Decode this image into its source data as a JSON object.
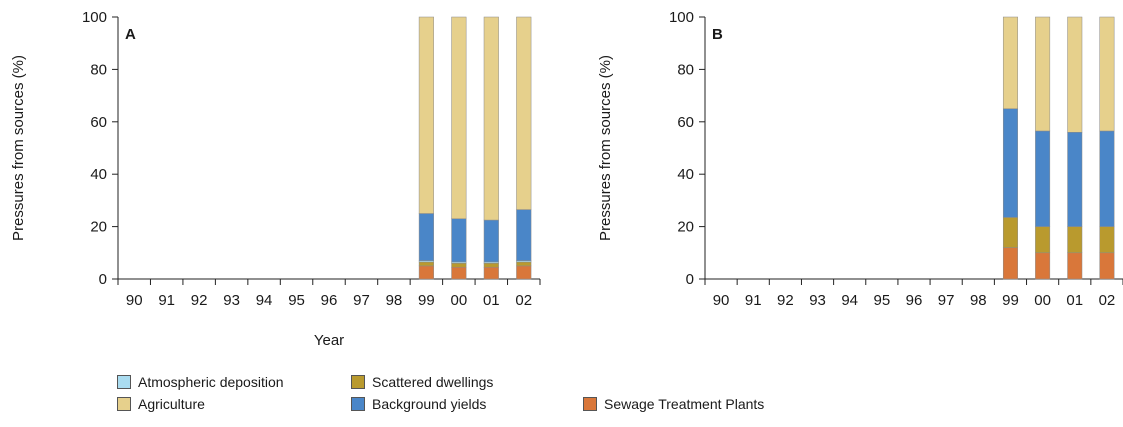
{
  "chart_data": [
    {
      "type": "bar",
      "stacked": true,
      "panel_label": "A",
      "categories": [
        "90",
        "91",
        "92",
        "93",
        "94",
        "95",
        "96",
        "97",
        "98",
        "99",
        "00",
        "01",
        "02"
      ],
      "ylabel": "Pressures from sources (%)",
      "xlabel": "Year",
      "ylim": [
        0,
        100
      ],
      "yticks": [
        0,
        20,
        40,
        60,
        80,
        100
      ],
      "series": [
        {
          "name": "Sewage Treatment Plants",
          "values": [
            null,
            null,
            null,
            null,
            null,
            null,
            null,
            null,
            null,
            5,
            4.5,
            4.5,
            5
          ]
        },
        {
          "name": "Scattered dwellings",
          "values": [
            null,
            null,
            null,
            null,
            null,
            null,
            null,
            null,
            null,
            1.5,
            1.5,
            1.5,
            1.5
          ]
        },
        {
          "name": "Atmospheric deposition",
          "values": [
            null,
            null,
            null,
            null,
            null,
            null,
            null,
            null,
            null,
            0.5,
            0.5,
            0.5,
            0.5
          ]
        },
        {
          "name": "Background yields",
          "values": [
            null,
            null,
            null,
            null,
            null,
            null,
            null,
            null,
            null,
            18,
            16.5,
            16,
            19.5
          ]
        },
        {
          "name": "Agriculture",
          "values": [
            null,
            null,
            null,
            null,
            null,
            null,
            null,
            null,
            null,
            75,
            77,
            77.5,
            73.5
          ]
        }
      ]
    },
    {
      "type": "bar",
      "stacked": true,
      "panel_label": "B",
      "categories": [
        "90",
        "91",
        "92",
        "93",
        "94",
        "95",
        "96",
        "97",
        "98",
        "99",
        "00",
        "01",
        "02"
      ],
      "ylabel": "Pressures from sources (%)",
      "xlabel": "",
      "ylim": [
        0,
        100
      ],
      "yticks": [
        0,
        20,
        40,
        60,
        80,
        100
      ],
      "series": [
        {
          "name": "Sewage Treatment Plants",
          "values": [
            null,
            null,
            null,
            null,
            null,
            null,
            null,
            null,
            null,
            12,
            10,
            10,
            10
          ]
        },
        {
          "name": "Scattered dwellings",
          "values": [
            null,
            null,
            null,
            null,
            null,
            null,
            null,
            null,
            null,
            11.5,
            10,
            10,
            10
          ]
        },
        {
          "name": "Atmospheric deposition",
          "values": [
            null,
            null,
            null,
            null,
            null,
            null,
            null,
            null,
            null,
            0,
            0,
            0,
            0
          ]
        },
        {
          "name": "Background yields",
          "values": [
            null,
            null,
            null,
            null,
            null,
            null,
            null,
            null,
            null,
            41.5,
            36.5,
            36,
            36.5
          ]
        },
        {
          "name": "Agriculture",
          "values": [
            null,
            null,
            null,
            null,
            null,
            null,
            null,
            null,
            null,
            35,
            43.5,
            44,
            43.5
          ]
        }
      ]
    }
  ],
  "colors": {
    "Atmospheric deposition": "#aadcf0",
    "Scattered dwellings": "#b99a2e",
    "Background yields": "#4a86c8",
    "Sewage Treatment Plants": "#d9773a",
    "Agriculture": "#e6d08c"
  },
  "legend": [
    {
      "label": "Atmospheric deposition",
      "color": "#aadcf0"
    },
    {
      "label": "Scattered dwellings",
      "color": "#b99a2e"
    },
    {
      "label": "Agriculture",
      "color": "#e6d08c"
    },
    {
      "label": "Background yields",
      "color": "#4a86c8"
    },
    {
      "label": "Sewage Treatment Plants",
      "color": "#d9773a"
    }
  ]
}
